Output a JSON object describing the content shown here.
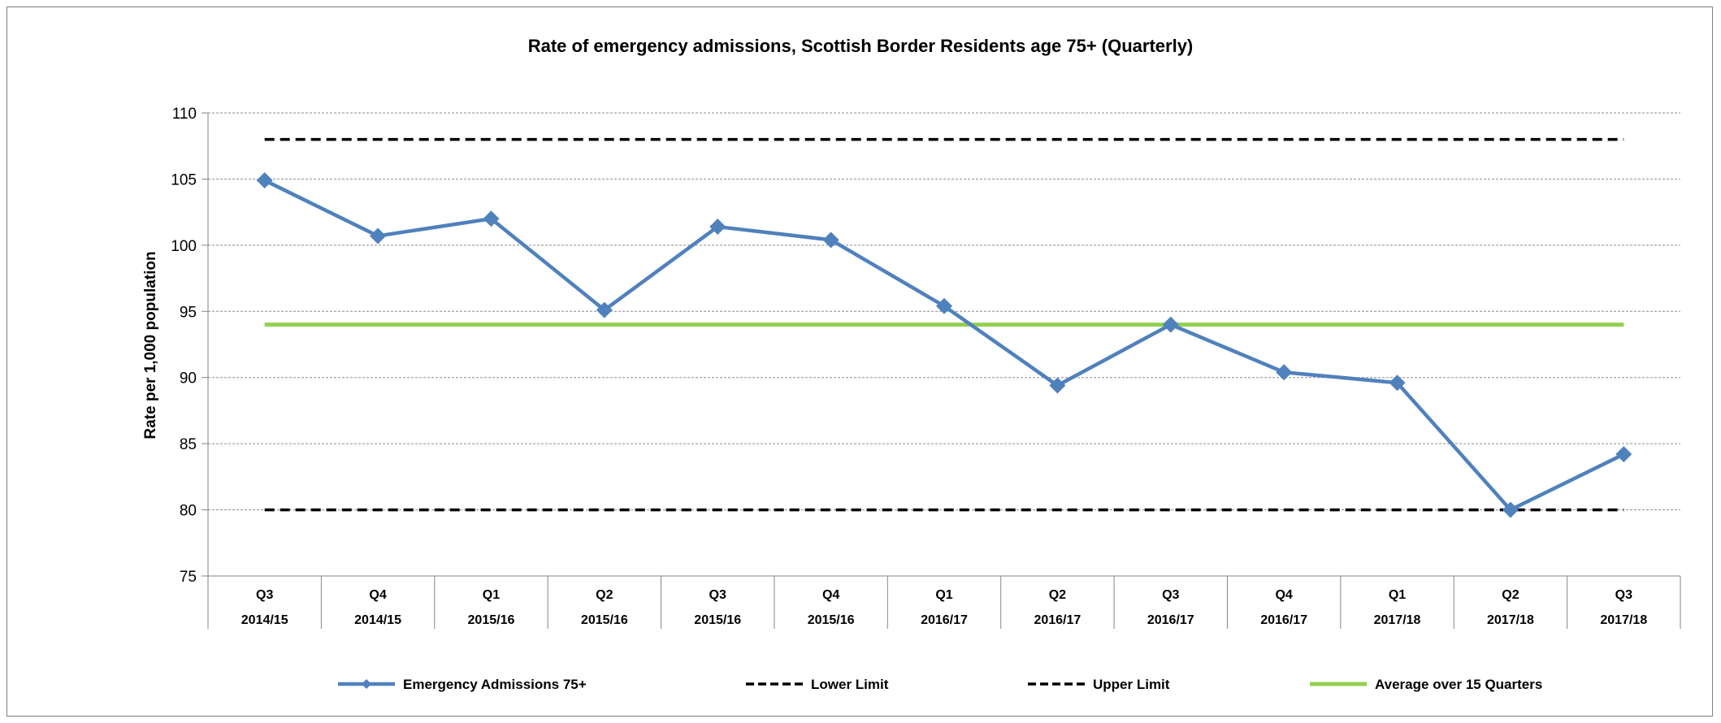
{
  "chart_data": {
    "type": "line",
    "title": "Rate of emergency admissions, Scottish Border Residents age 75+ (Quarterly)",
    "xlabel": "",
    "ylabel": "Rate per 1,000 population",
    "ylim": [
      75,
      110
    ],
    "yticks": [
      75,
      80,
      85,
      90,
      95,
      100,
      105,
      110
    ],
    "grid": true,
    "legend_position": "bottom",
    "categories": [
      {
        "quarter": "Q3",
        "year": "2014/15"
      },
      {
        "quarter": "Q4",
        "year": "2014/15"
      },
      {
        "quarter": "Q1",
        "year": "2015/16"
      },
      {
        "quarter": "Q2",
        "year": "2015/16"
      },
      {
        "quarter": "Q3",
        "year": "2015/16"
      },
      {
        "quarter": "Q4",
        "year": "2015/16"
      },
      {
        "quarter": "Q1",
        "year": "2016/17"
      },
      {
        "quarter": "Q2",
        "year": "2016/17"
      },
      {
        "quarter": "Q3",
        "year": "2016/17"
      },
      {
        "quarter": "Q4",
        "year": "2016/17"
      },
      {
        "quarter": "Q1",
        "year": "2017/18"
      },
      {
        "quarter": "Q2",
        "year": "2017/18"
      },
      {
        "quarter": "Q3",
        "year": "2017/18"
      }
    ],
    "series": [
      {
        "name": "Emergency Admissions 75+",
        "color": "#4f81bd",
        "style": "line-diamond",
        "values": [
          104.9,
          100.7,
          102.0,
          95.1,
          101.4,
          100.4,
          95.4,
          89.4,
          94.0,
          90.4,
          89.6,
          80.0,
          84.2
        ]
      },
      {
        "name": "Lower Limit",
        "color": "#000000",
        "style": "dashed",
        "value": 80.0
      },
      {
        "name": "Upper Limit",
        "color": "#000000",
        "style": "dashed",
        "value": 108.0
      },
      {
        "name": "Average over 15 Quarters",
        "color": "#92d050",
        "style": "solid",
        "value": 94.0
      }
    ]
  }
}
